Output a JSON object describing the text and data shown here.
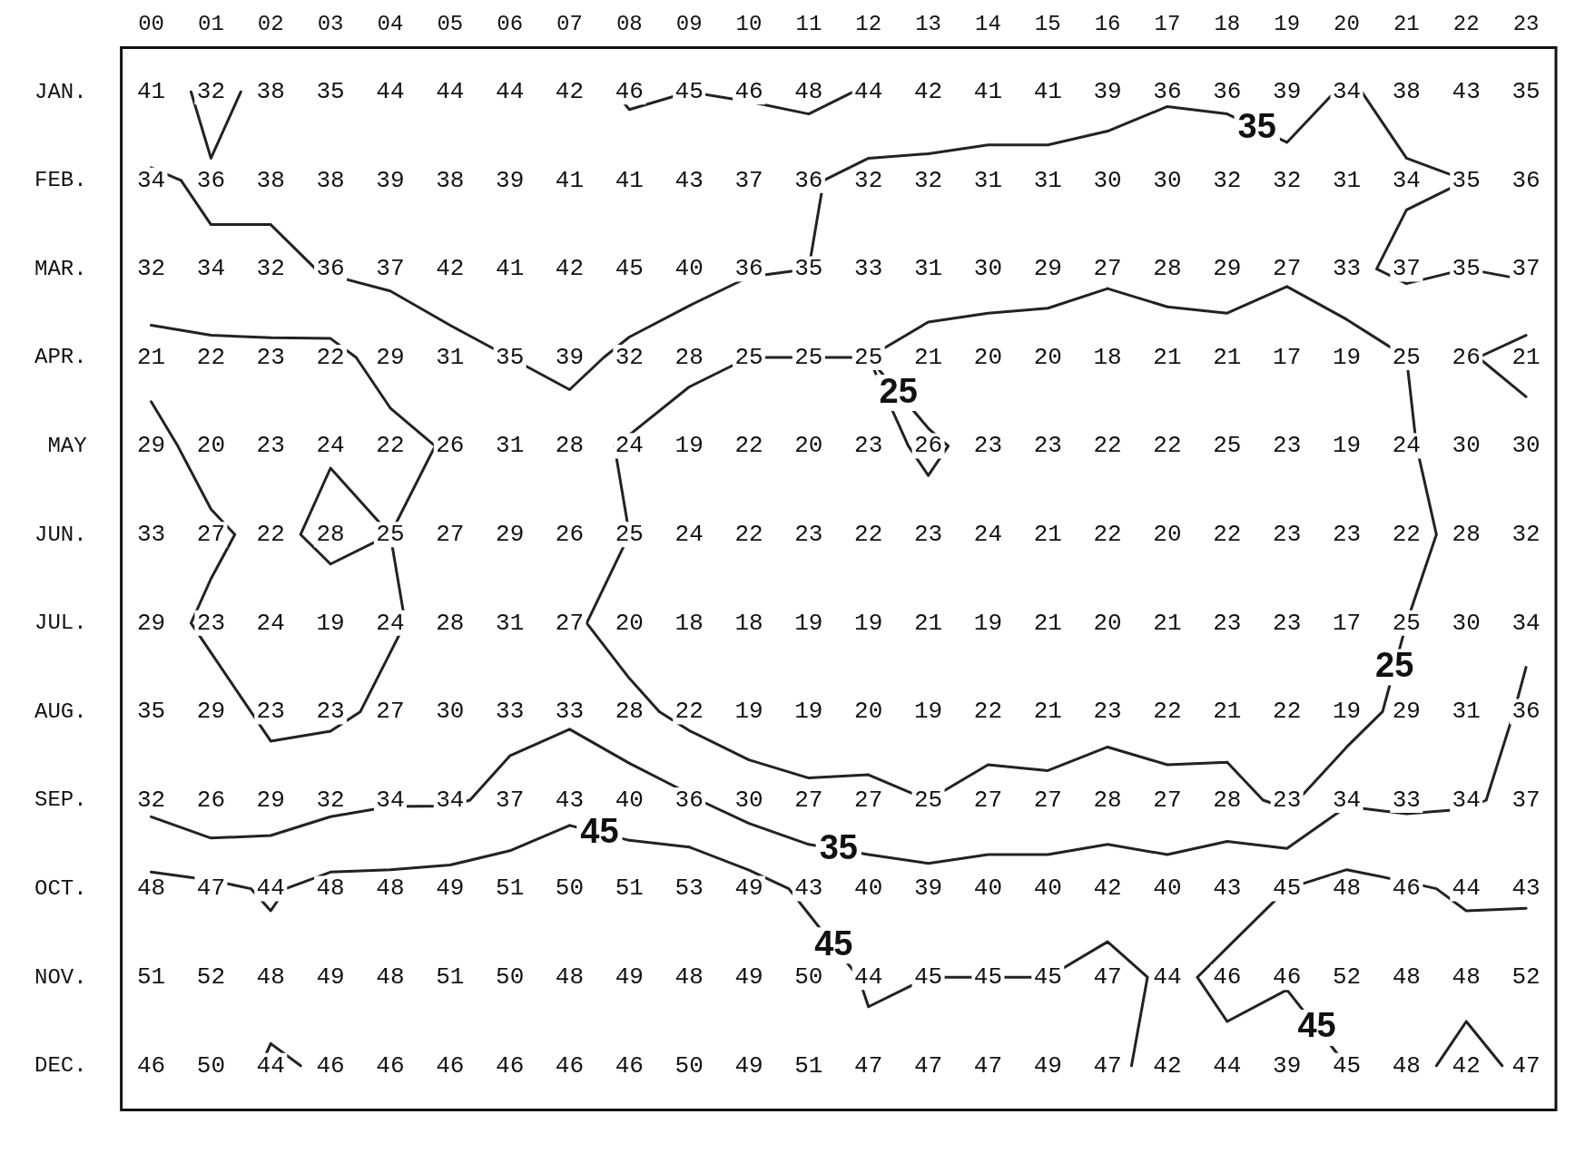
{
  "chart_data": {
    "type": "heatmap",
    "categories": [
      "00",
      "01",
      "02",
      "03",
      "04",
      "05",
      "06",
      "07",
      "08",
      "09",
      "10",
      "11",
      "12",
      "13",
      "14",
      "15",
      "16",
      "17",
      "18",
      "19",
      "20",
      "21",
      "22",
      "23"
    ],
    "y_categories": [
      "JAN.",
      "FEB.",
      "MAR.",
      "APR.",
      "MAY",
      "JUN.",
      "JUL.",
      "AUG.",
      "SEP.",
      "OCT.",
      "NOV.",
      "DEC."
    ],
    "cells": [
      [
        41,
        32,
        38,
        35,
        44,
        44,
        44,
        42,
        46,
        45,
        46,
        48,
        44,
        42,
        41,
        41,
        39,
        36,
        36,
        39,
        34,
        38,
        43,
        35
      ],
      [
        34,
        36,
        38,
        38,
        39,
        38,
        39,
        41,
        41,
        43,
        37,
        36,
        32,
        32,
        31,
        31,
        30,
        30,
        32,
        32,
        31,
        34,
        35,
        36
      ],
      [
        32,
        34,
        32,
        36,
        37,
        42,
        41,
        42,
        45,
        40,
        36,
        35,
        33,
        31,
        30,
        29,
        27,
        28,
        29,
        27,
        33,
        37,
        35,
        37
      ],
      [
        21,
        22,
        23,
        22,
        29,
        31,
        35,
        39,
        32,
        28,
        25,
        25,
        25,
        21,
        20,
        20,
        18,
        21,
        21,
        17,
        19,
        25,
        26,
        21
      ],
      [
        29,
        20,
        23,
        24,
        22,
        26,
        31,
        28,
        24,
        19,
        22,
        20,
        23,
        26,
        23,
        23,
        22,
        22,
        25,
        23,
        19,
        24,
        30,
        30
      ],
      [
        33,
        27,
        22,
        28,
        25,
        27,
        29,
        26,
        25,
        24,
        22,
        23,
        22,
        23,
        24,
        21,
        22,
        20,
        22,
        23,
        23,
        22,
        28,
        32
      ],
      [
        29,
        23,
        24,
        19,
        24,
        28,
        31,
        27,
        20,
        18,
        18,
        19,
        19,
        21,
        19,
        21,
        20,
        21,
        23,
        23,
        17,
        25,
        30,
        34
      ],
      [
        35,
        29,
        23,
        23,
        27,
        30,
        33,
        33,
        28,
        22,
        19,
        19,
        20,
        19,
        22,
        21,
        23,
        22,
        21,
        22,
        19,
        29,
        31,
        36
      ],
      [
        32,
        26,
        29,
        32,
        34,
        34,
        37,
        43,
        40,
        36,
        30,
        27,
        27,
        25,
        27,
        27,
        28,
        27,
        28,
        23,
        34,
        33,
        34,
        37
      ],
      [
        48,
        47,
        44,
        48,
        48,
        49,
        51,
        50,
        51,
        53,
        49,
        43,
        40,
        39,
        40,
        40,
        42,
        40,
        43,
        45,
        48,
        46,
        44,
        43
      ],
      [
        51,
        52,
        48,
        49,
        48,
        51,
        50,
        48,
        49,
        48,
        49,
        50,
        44,
        45,
        45,
        45,
        47,
        44,
        46,
        46,
        52,
        48,
        48,
        52
      ],
      [
        46,
        50,
        44,
        46,
        46,
        46,
        46,
        46,
        46,
        50,
        49,
        51,
        47,
        47,
        47,
        49,
        47,
        42,
        44,
        39,
        45,
        48,
        42,
        47
      ]
    ],
    "data_labels": true,
    "annotations": [
      "45",
      "35",
      "25",
      "25",
      "45",
      "35",
      "45"
    ]
  }
}
